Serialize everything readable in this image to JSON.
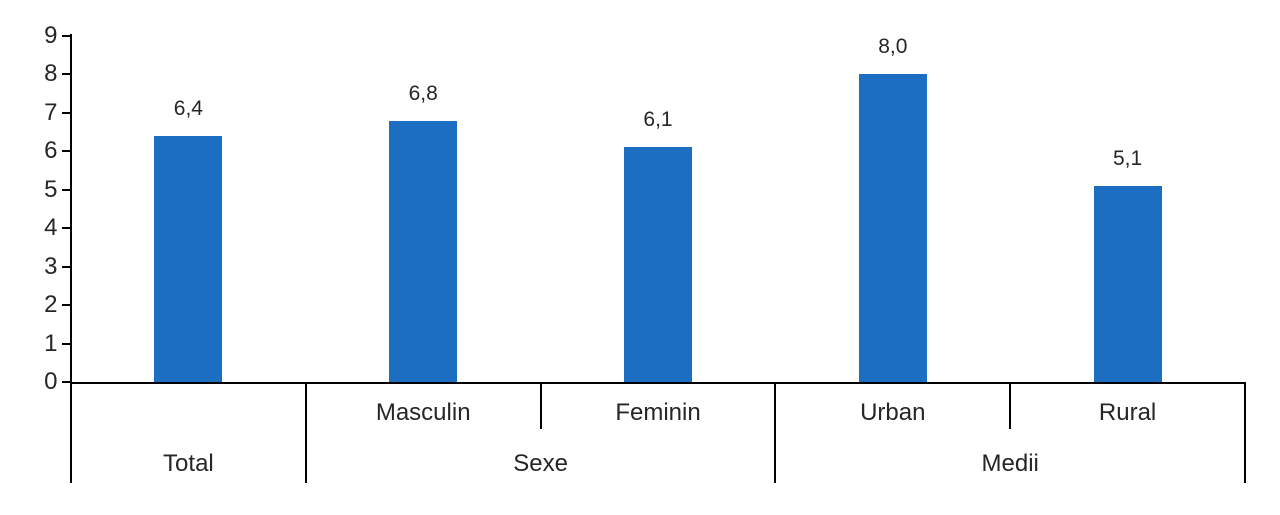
{
  "chart_data": {
    "type": "bar",
    "title": "",
    "xlabel": "",
    "ylabel": "",
    "ylim": [
      0,
      9
    ],
    "yticks": [
      "0",
      "1",
      "2",
      "3",
      "4",
      "5",
      "6",
      "7",
      "8",
      "9"
    ],
    "grid": false,
    "legend": null,
    "bar_color": "#1C6EC2",
    "axis_color": "#000000",
    "text_color": "#262626",
    "background_color": "#FFFFFF",
    "values": [
      6.4,
      6.8,
      6.1,
      8.0,
      5.1
    ],
    "value_labels": [
      "6,4",
      "6,8",
      "6,1",
      "8,0",
      "5,1"
    ],
    "category_axis": {
      "sub_labels": [
        "",
        "Masculin",
        "Feminin",
        "Urban",
        "Rural"
      ],
      "group_labels": [
        {
          "label": "Total",
          "span": 1
        },
        {
          "label": "Sexe",
          "span": 2
        },
        {
          "label": "Medii",
          "span": 2
        }
      ]
    }
  }
}
